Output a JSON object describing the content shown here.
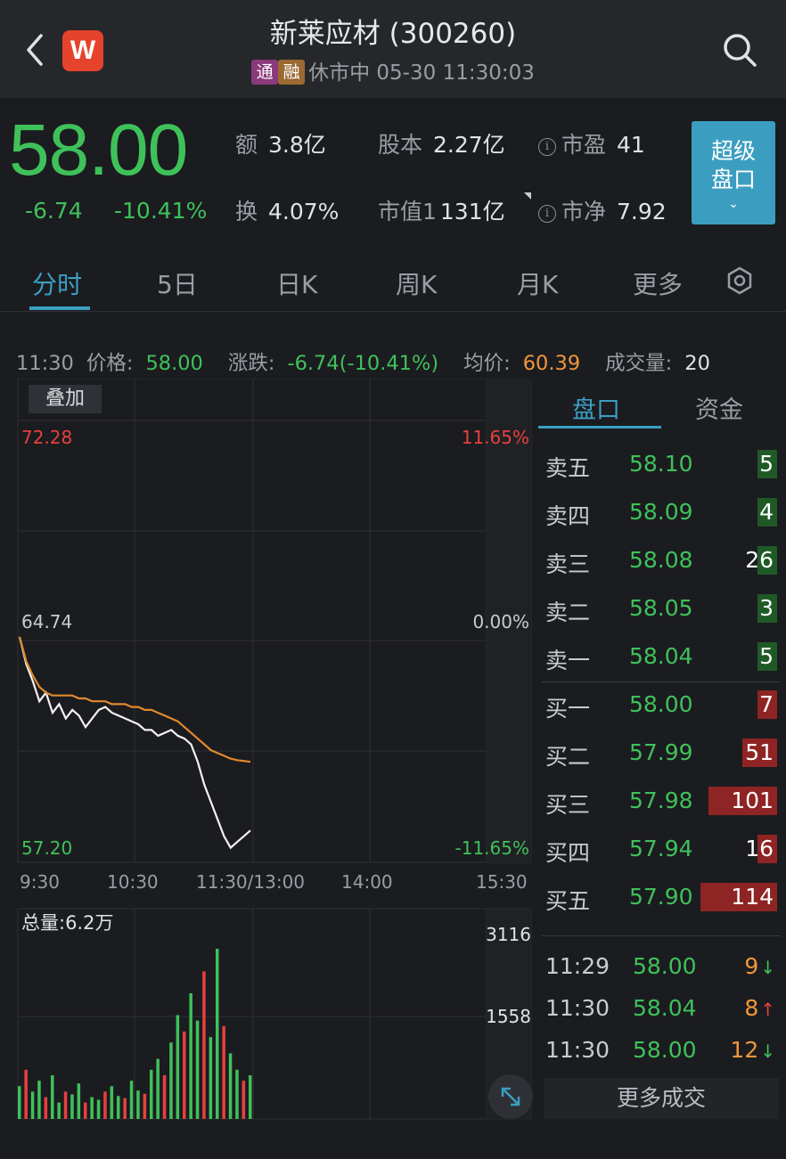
{
  "header": {
    "logo_letter": "W",
    "title": "新莱应材 (300260)",
    "tag1": "通",
    "tag2": "融",
    "status": "休市中 05-30 11:30:03"
  },
  "quote": {
    "price": "58.00",
    "change": "-6.74",
    "change_pct": "-10.41%",
    "stats": [
      {
        "label": "额",
        "value": "3.8亿"
      },
      {
        "label": "股本",
        "value": "2.27亿"
      },
      {
        "label": "市盈",
        "value": "41"
      },
      {
        "label": "换",
        "value": "4.07%"
      },
      {
        "label": "市值1",
        "value": "131亿"
      },
      {
        "label": "市净",
        "value": "7.92"
      }
    ],
    "super_btn": [
      "超级",
      "盘口"
    ]
  },
  "tabs": [
    "分时",
    "5日",
    "日K",
    "周K",
    "月K",
    "更多"
  ],
  "infoline": {
    "time": "11:30",
    "price_label": "价格:",
    "price": "58.00",
    "chg_label": "涨跌:",
    "chg": "-6.74(-10.41%)",
    "avg_label": "均价:",
    "avg": "60.39",
    "vol_label": "成交量:",
    "vol": "20"
  },
  "chart": {
    "overlay_btn": "叠加",
    "y_high": "72.28",
    "y_mid": "64.74",
    "y_low": "57.20",
    "pct_high": "11.65%",
    "pct_mid": "0.00%",
    "pct_low": "-11.65%",
    "x_labels": [
      "9:30",
      "10:30",
      "11:30/13:00",
      "14:00",
      "15:30"
    ],
    "vol_total": "总量:6.2万",
    "vol_max": "3116",
    "vol_mid": "1558"
  },
  "chart_data": {
    "type": "line",
    "series": [
      {
        "values": [
          64.74,
          63.8,
          63.2,
          62.5,
          62.8,
          62.1,
          62.4,
          61.9,
          62.2,
          62.0,
          61.6,
          61.9,
          62.2,
          62.3,
          62.1,
          62.0,
          61.9,
          61.8,
          61.7,
          61.5,
          61.5,
          61.3,
          61.4,
          61.5,
          61.3,
          61.2,
          61.0,
          60.4,
          59.6,
          59.0,
          58.4,
          57.8,
          57.4,
          57.6,
          57.8,
          58.0
        ]
      },
      {
        "values": [
          64.74,
          63.9,
          63.4,
          63.0,
          62.8,
          62.7,
          62.7,
          62.7,
          62.7,
          62.6,
          62.6,
          62.5,
          62.5,
          62.5,
          62.4,
          62.4,
          62.4,
          62.3,
          62.3,
          62.2,
          62.2,
          62.1,
          62.0,
          61.9,
          61.8,
          61.6,
          61.4,
          61.2,
          61.0,
          60.8,
          60.7,
          60.6,
          60.5,
          60.45,
          60.42,
          60.39
        ]
      }
    ],
    "ylim": [
      57.2,
      72.28
    ],
    "volume": [
      600,
      900,
      500,
      700,
      400,
      800,
      300,
      500,
      450,
      650,
      300,
      400,
      350,
      500,
      600,
      420,
      380,
      700,
      520,
      460,
      900,
      1100,
      800,
      1400,
      1900,
      1600,
      2300,
      1800,
      2700,
      1500,
      3116,
      1700,
      1200,
      900,
      700,
      800
    ]
  },
  "orderbook": {
    "tab_active": "盘口",
    "tab_other": "资金",
    "asks": [
      {
        "name": "卖五",
        "price": "58.10",
        "qty": "5",
        "frac": 0.05
      },
      {
        "name": "卖四",
        "price": "58.09",
        "qty": "4",
        "frac": 0.04
      },
      {
        "name": "卖三",
        "price": "58.08",
        "qty": "26",
        "frac": 0.23
      },
      {
        "name": "卖二",
        "price": "58.05",
        "qty": "3",
        "frac": 0.03
      },
      {
        "name": "卖一",
        "price": "58.04",
        "qty": "5",
        "frac": 0.05
      }
    ],
    "bids": [
      {
        "name": "买一",
        "price": "58.00",
        "qty": "7",
        "frac": 0.06
      },
      {
        "name": "买二",
        "price": "57.99",
        "qty": "51",
        "frac": 0.45
      },
      {
        "name": "买三",
        "price": "57.98",
        "qty": "101",
        "frac": 0.89
      },
      {
        "name": "买四",
        "price": "57.94",
        "qty": "16",
        "frac": 0.14
      },
      {
        "name": "买五",
        "price": "57.90",
        "qty": "114",
        "frac": 1.0
      }
    ],
    "trades": [
      {
        "time": "11:29",
        "price": "58.00",
        "qty": "9",
        "dir": "↓"
      },
      {
        "time": "11:30",
        "price": "58.04",
        "qty": "8",
        "dir": "↑"
      },
      {
        "time": "11:30",
        "price": "58.00",
        "qty": "12",
        "dir": "↓"
      }
    ],
    "more": "更多成交"
  },
  "colors": {
    "up": "#e8403f",
    "down": "#3fc15a",
    "accent": "#3b9ec1",
    "avg_line": "#e08a2c"
  }
}
